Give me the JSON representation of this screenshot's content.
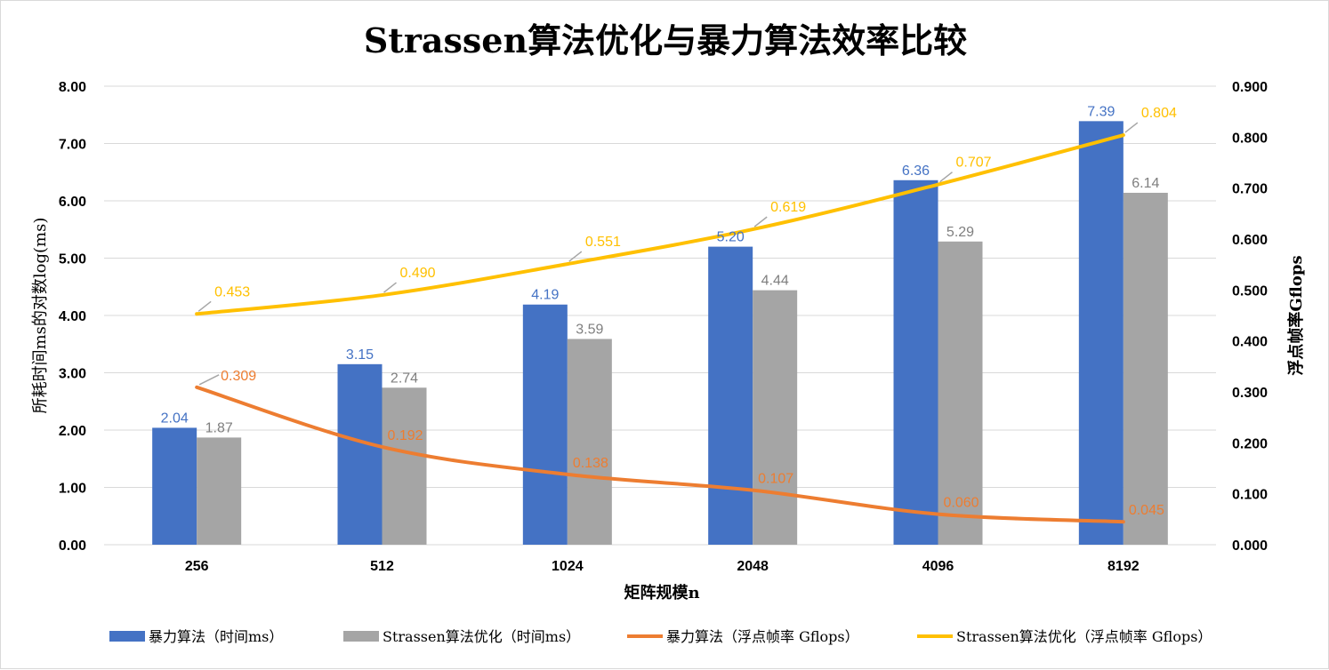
{
  "chart_data": {
    "type": "bar",
    "title": "Strassen算法优化与暴力算法效率比较",
    "xlabel": "矩阵规模n",
    "ylabel": "所耗时间ms的对数log(ms)",
    "y2label": "浮点帧率Gflops",
    "categories": [
      "256",
      "512",
      "1024",
      "2048",
      "4096",
      "8192"
    ],
    "ylim": [
      0,
      8
    ],
    "y_ticks": [
      "0.00",
      "1.00",
      "2.00",
      "3.00",
      "4.00",
      "5.00",
      "6.00",
      "7.00",
      "8.00"
    ],
    "y2lim": [
      0,
      0.9
    ],
    "y2_ticks": [
      "0.000",
      "0.100",
      "0.200",
      "0.300",
      "0.400",
      "0.500",
      "0.600",
      "0.700",
      "0.800",
      "0.900"
    ],
    "grid": true,
    "legend_position": "bottom",
    "series": [
      {
        "name": "暴力算法（时间ms）",
        "kind": "bar",
        "axis": "left",
        "color": "#4472C4",
        "values": [
          2.04,
          3.15,
          4.19,
          5.2,
          6.36,
          7.39
        ],
        "labels": [
          "2.04",
          "3.15",
          "4.19",
          "5.20",
          "6.36",
          "7.39"
        ]
      },
      {
        "name": "Strassen算法优化（时间ms）",
        "kind": "bar",
        "axis": "left",
        "color": "#A5A5A5",
        "values": [
          1.87,
          2.74,
          3.59,
          4.44,
          5.29,
          6.14
        ],
        "labels": [
          "1.87",
          "2.74",
          "3.59",
          "4.44",
          "5.29",
          "6.14"
        ]
      },
      {
        "name": "暴力算法（浮点帧率 Gflops）",
        "kind": "line",
        "axis": "right",
        "color": "#ED7D31",
        "values": [
          0.309,
          0.192,
          0.138,
          0.107,
          0.06,
          0.045
        ],
        "labels": [
          "0.309",
          "0.192",
          "0.138",
          "0.107",
          "0.060",
          "0.045"
        ]
      },
      {
        "name": "Strassen算法优化（浮点帧率 Gflops）",
        "kind": "line",
        "axis": "right",
        "color": "#FFC000",
        "values": [
          0.453,
          0.49,
          0.551,
          0.619,
          0.707,
          0.804
        ],
        "labels": [
          "0.453",
          "0.490",
          "0.551",
          "0.619",
          "0.707",
          "0.804"
        ]
      }
    ]
  }
}
